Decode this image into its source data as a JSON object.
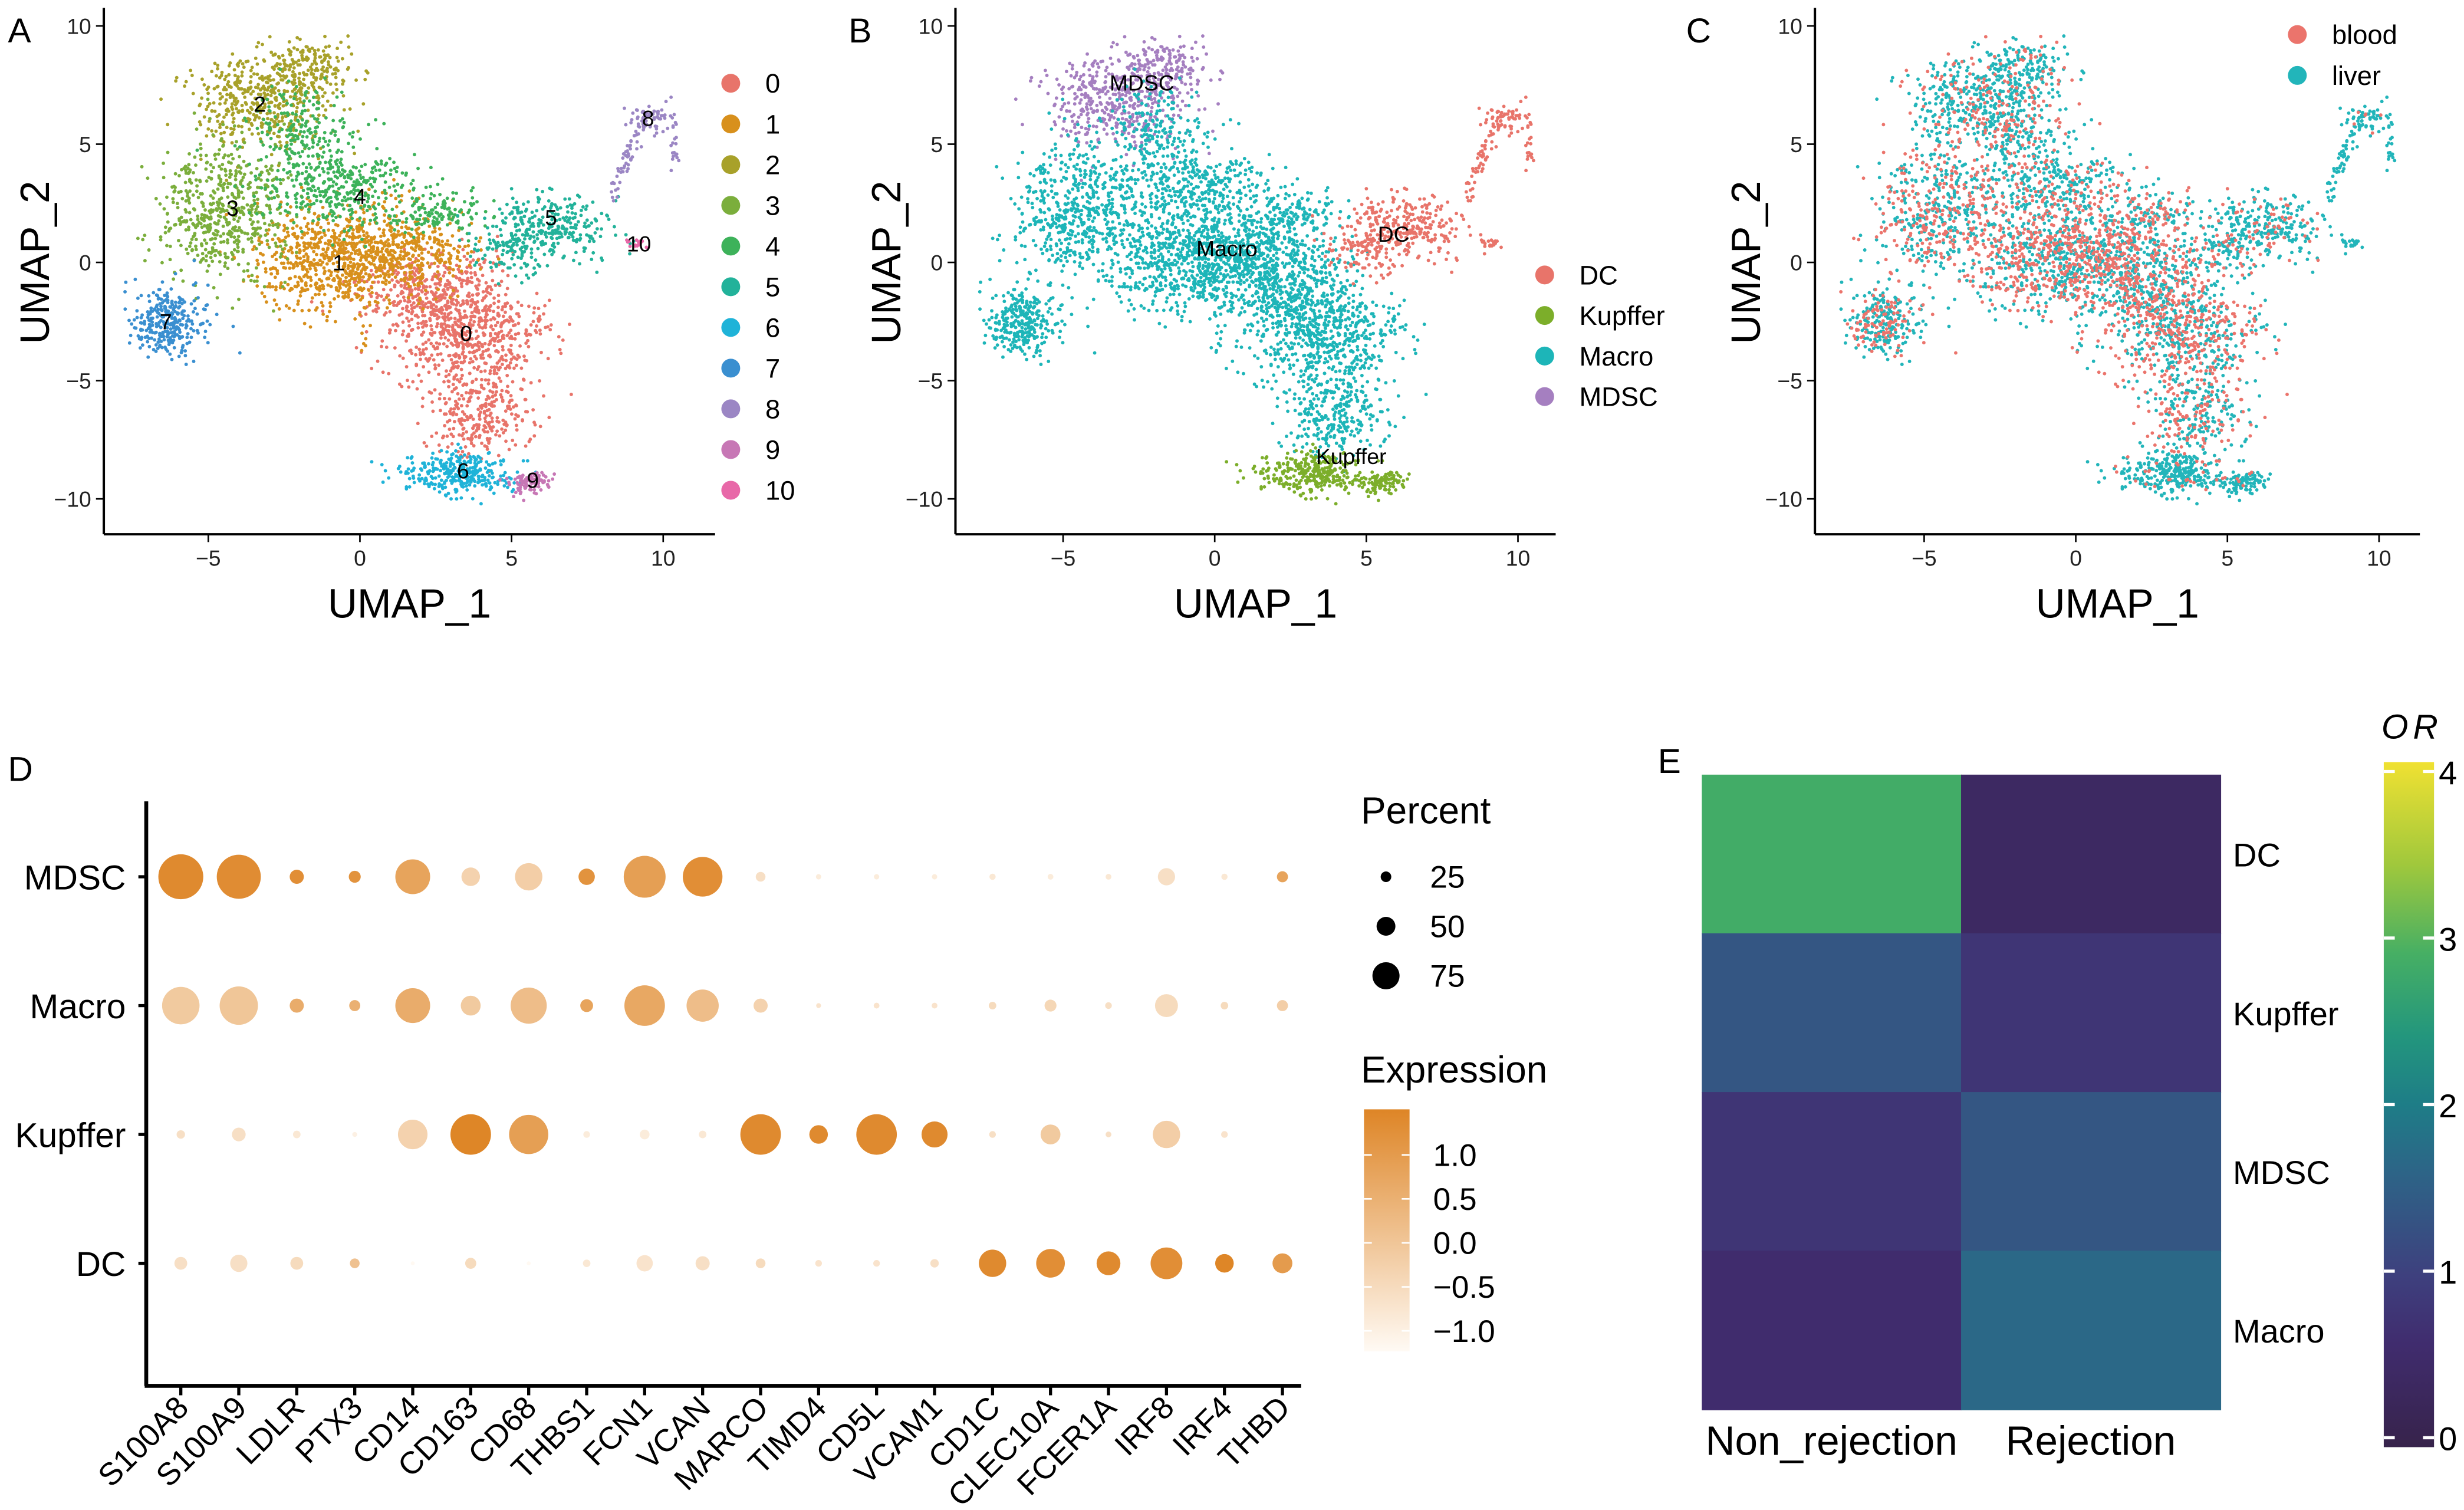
{
  "panels": {
    "A": "A",
    "B": "B",
    "C": "C",
    "D": "D",
    "E": "E"
  },
  "chart_data": [
    {
      "panel": "A",
      "type": "scatter",
      "xlabel": "UMAP_1",
      "ylabel": "UMAP_2",
      "xticks": [
        -5,
        0,
        5,
        10
      ],
      "yticks": [
        -10,
        -5,
        0,
        5,
        10
      ],
      "xlim": [
        -8.5,
        11.7
      ],
      "ylim": [
        -11.5,
        10.3
      ],
      "legend": {
        "placement": "right",
        "entries": [
          {
            "name": "0",
            "color": "#E8746A"
          },
          {
            "name": "1",
            "color": "#D8901C"
          },
          {
            "name": "2",
            "color": "#A8A12A"
          },
          {
            "name": "3",
            "color": "#7BAE3C"
          },
          {
            "name": "4",
            "color": "#3DB25A"
          },
          {
            "name": "5",
            "color": "#22B29A"
          },
          {
            "name": "6",
            "color": "#1FB3D8"
          },
          {
            "name": "7",
            "color": "#3A8FD0"
          },
          {
            "name": "8",
            "color": "#9B86C4"
          },
          {
            "name": "9",
            "color": "#C777B5"
          },
          {
            "name": "10",
            "color": "#E868A8"
          }
        ]
      },
      "cluster_labels": [
        {
          "text": "0",
          "x": 3.5,
          "y": -3.0
        },
        {
          "text": "1",
          "x": -0.7,
          "y": 0.0
        },
        {
          "text": "2",
          "x": -3.3,
          "y": 6.7
        },
        {
          "text": "3",
          "x": -4.2,
          "y": 2.3
        },
        {
          "text": "4",
          "x": 0.0,
          "y": 2.8
        },
        {
          "text": "5",
          "x": 6.3,
          "y": 1.9
        },
        {
          "text": "6",
          "x": 3.4,
          "y": -8.8
        },
        {
          "text": "7",
          "x": -6.4,
          "y": -2.5
        },
        {
          "text": "8",
          "x": 9.5,
          "y": 6.1
        },
        {
          "text": "9",
          "x": 5.7,
          "y": -9.2
        },
        {
          "text": "10",
          "x": 9.2,
          "y": 0.8
        }
      ]
    },
    {
      "panel": "B",
      "type": "scatter",
      "xlabel": "UMAP_1",
      "ylabel": "UMAP_2",
      "xticks": [
        -5,
        0,
        5,
        10
      ],
      "yticks": [
        -10,
        -5,
        0,
        5,
        10
      ],
      "xlim": [
        -8.5,
        11.7
      ],
      "ylim": [
        -11.5,
        10.3
      ],
      "legend": {
        "placement": "right",
        "entries": [
          {
            "name": "DC",
            "color": "#E8746A"
          },
          {
            "name": "Kupffer",
            "color": "#7CAE2A"
          },
          {
            "name": "Macro",
            "color": "#1DB5B8"
          },
          {
            "name": "MDSC",
            "color": "#A57FC0"
          }
        ]
      },
      "cluster_labels": [
        {
          "text": "MDSC",
          "x": -2.4,
          "y": 7.6
        },
        {
          "text": "Macro",
          "x": 0.4,
          "y": 0.6
        },
        {
          "text": "DC",
          "x": 5.9,
          "y": 1.2
        },
        {
          "text": "Kupffer",
          "x": 4.5,
          "y": -8.2
        }
      ]
    },
    {
      "panel": "C",
      "type": "scatter",
      "xlabel": "UMAP_1",
      "ylabel": "UMAP_2",
      "xticks": [
        -5,
        0,
        5,
        10
      ],
      "yticks": [
        -10,
        -5,
        0,
        5,
        10
      ],
      "xlim": [
        -8.5,
        11.7
      ],
      "ylim": [
        -11.5,
        10.3
      ],
      "legend": {
        "placement": "top-right",
        "entries": [
          {
            "name": "blood",
            "color": "#EB746C"
          },
          {
            "name": "liver",
            "color": "#22B5BA"
          }
        ]
      }
    },
    {
      "panel": "D",
      "type": "dotplot",
      "genes": [
        "S100A8",
        "S100A9",
        "LDLR",
        "PTX3",
        "CD14",
        "CD163",
        "CD68",
        "THBS1",
        "FCN1",
        "VCAN",
        "MARCO",
        "TIMD4",
        "CD5L",
        "VCAM1",
        "CD1C",
        "CLEC10A",
        "FCER1A",
        "IRF8",
        "IRF4",
        "THBD"
      ],
      "groups": [
        "MDSC",
        "Macro",
        "Kupffer",
        "DC"
      ],
      "percent": [
        [
          95,
          93,
          25,
          20,
          72,
          35,
          55,
          30,
          88,
          83,
          15,
          5,
          5,
          5,
          7,
          6,
          6,
          32,
          7,
          18
        ],
        [
          78,
          80,
          25,
          18,
          72,
          38,
          75,
          22,
          85,
          66,
          25,
          4,
          6,
          6,
          10,
          20,
          8,
          45,
          10,
          18
        ],
        [
          12,
          24,
          10,
          4,
          60,
          85,
          82,
          8,
          15,
          10,
          85,
          35,
          85,
          52,
          8,
          38,
          6,
          55,
          8,
          0
        ],
        [
          22,
          32,
          22,
          15,
          2,
          18,
          2,
          10,
          30,
          25,
          15,
          8,
          8,
          12,
          55,
          58,
          47,
          65,
          35,
          38
        ]
      ],
      "expression": [
        [
          1.4,
          1.35,
          1.3,
          1.2,
          0.8,
          -0.3,
          -0.2,
          1.2,
          0.9,
          1.3,
          -0.6,
          -0.9,
          -0.9,
          -0.9,
          -0.8,
          -0.9,
          -0.8,
          -0.6,
          -0.8,
          0.8
        ],
        [
          -0.1,
          0.0,
          0.6,
          0.5,
          0.6,
          -0.1,
          0.2,
          0.8,
          0.7,
          0.2,
          -0.3,
          -0.7,
          -0.7,
          -0.7,
          -0.5,
          -0.4,
          -0.6,
          -0.5,
          -0.5,
          -0.2
        ],
        [
          -0.6,
          -0.6,
          -0.8,
          -1.0,
          -0.3,
          1.5,
          0.9,
          -0.9,
          -0.9,
          -0.8,
          1.4,
          1.4,
          1.4,
          1.4,
          -0.6,
          -0.1,
          -0.6,
          -0.2,
          -0.7,
          -1.0
        ],
        [
          -0.6,
          -0.6,
          -0.5,
          0.1,
          -1.2,
          -0.5,
          -1.2,
          -0.8,
          -0.7,
          -0.6,
          -0.5,
          -0.7,
          -0.7,
          -0.6,
          1.4,
          1.3,
          1.4,
          1.3,
          1.5,
          1.0
        ]
      ],
      "size_legend": {
        "title": "Percent",
        "values": [
          25,
          50,
          75
        ]
      },
      "color_legend": {
        "title": "Expression",
        "ticks": [
          1.0,
          0.5,
          0.0,
          -0.5,
          -1.0
        ],
        "tick_labels": [
          "1.0",
          "0.5",
          "0.0",
          "−0.5",
          "−1.0"
        ],
        "range": [
          -1.23,
          1.52
        ],
        "low_color": "#FFFAF4",
        "high_color": "#DE8526"
      }
    },
    {
      "panel": "E",
      "type": "heatmap",
      "columns": [
        "Non_rejection",
        "Rejection"
      ],
      "rows": [
        "DC",
        "Kupffer",
        "MDSC",
        "Macro"
      ],
      "values": [
        [
          2.9,
          0.4
        ],
        [
          1.4,
          0.8
        ],
        [
          0.8,
          1.4
        ],
        [
          0.6,
          1.7
        ]
      ],
      "colorbar": {
        "title": "OR",
        "ticks": [
          0,
          1,
          2,
          3,
          4
        ],
        "range": [
          0,
          4.1
        ],
        "palette": "viridis"
      }
    }
  ]
}
